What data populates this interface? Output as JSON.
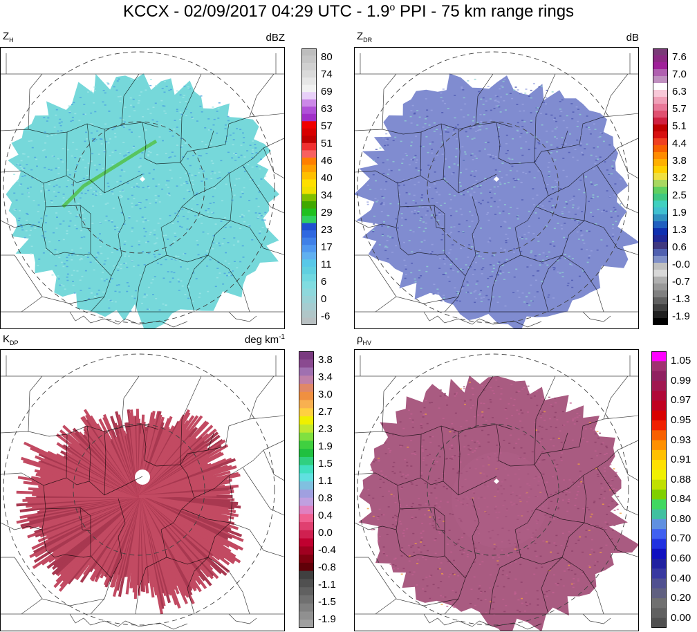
{
  "title": {
    "text": "KCCX - 02/09/2017 04:29 UTC - 1.9",
    "degree_sup": "o",
    "suffix": "PPI -  75 km range rings"
  },
  "colors": {
    "zh_echo": "#6fd6d8",
    "zh_band": "#4aa0e0",
    "zh_green": "#50c040",
    "zdr_echo": "#6a78c8",
    "kdp_echo": "#c24a62",
    "rhohv_echo": "#a4527a",
    "rhohv_speck": "#f0a040",
    "county_line": "#000000",
    "ring": "#404040"
  },
  "chart_data": [
    {
      "type": "heatmap",
      "title_main": "Z",
      "title_sub": "H",
      "unit": "dBZ",
      "unit_sup": "",
      "colorbar": {
        "tick_labels": [
          "80",
          "74",
          "69",
          "63",
          "57",
          "51",
          "46",
          "40",
          "34",
          "29",
          "23",
          "17",
          "11",
          "6",
          "0",
          "-6"
        ],
        "colors": [
          "#bdbdbd",
          "#c6c6c6",
          "#d0d0d0",
          "#dadada",
          "#e6e6e6",
          "#f1f1f1",
          "#e8d0f8",
          "#cc88e8",
          "#b050d8",
          "#a030c8",
          "#f00000",
          "#d80000",
          "#c00000",
          "#f03030",
          "#f86060",
          "#ff7f00",
          "#ff9f00",
          "#ffbf00",
          "#ffdf00",
          "#f0e000",
          "#80c000",
          "#40a800",
          "#20c020",
          "#30d060",
          "#2050d0",
          "#3068e0",
          "#4080e8",
          "#5098f0",
          "#60b0f0",
          "#58c8e8",
          "#60d0e0",
          "#70d8e0",
          "#80dce0",
          "#8ed8dc",
          "#9ad2d6",
          "#a6ccd0",
          "#b0c6c8",
          "#b8c0c2"
        ]
      },
      "range_rings_km": [
        75,
        150
      ],
      "grid": false
    },
    {
      "type": "heatmap",
      "title_main": "Z",
      "title_sub": "DR",
      "unit": "dB",
      "unit_sup": "",
      "colorbar": {
        "tick_labels": [
          "7.6",
          "7.0",
          "6.3",
          "5.7",
          "5.1",
          "4.4",
          "3.8",
          "3.2",
          "2.5",
          "1.9",
          "1.3",
          "0.6",
          "-0.0",
          "-0.7",
          "-1.3",
          "-1.9"
        ],
        "colors": [
          "#7a3a78",
          "#8c2a84",
          "#a0209a",
          "#b060b0",
          "#c090c0",
          "#ffffff",
          "#f8c8d8",
          "#f0a0b8",
          "#e87898",
          "#e05070",
          "#d02040",
          "#c00000",
          "#d81010",
          "#f04020",
          "#f86000",
          "#ff8c00",
          "#ffb000",
          "#ffd000",
          "#f0e040",
          "#a8d860",
          "#60d060",
          "#40c880",
          "#40d0c0",
          "#40c0d0",
          "#3090c0",
          "#2060c0",
          "#1030b0",
          "#202898",
          "#403880",
          "#5060b0",
          "#8090c8",
          "#c0c0c0",
          "#d8d8d8",
          "#b0b0b0",
          "#989898",
          "#808080",
          "#606060",
          "#404040",
          "#202020",
          "#000000"
        ]
      },
      "range_rings_km": [
        75,
        150
      ],
      "grid": false
    },
    {
      "type": "heatmap",
      "title_main": "K",
      "title_sub": "DP",
      "unit": "deg km",
      "unit_sup": "-1",
      "colorbar": {
        "tick_labels": [
          "3.8",
          "3.4",
          "3.0",
          "2.7",
          "2.3",
          "1.9",
          "1.5",
          "1.1",
          "0.8",
          "0.4",
          "0.0",
          "-0.4",
          "-0.8",
          "-1.1",
          "-1.5",
          "-1.9"
        ],
        "colors": [
          "#7a3a80",
          "#8a4a90",
          "#a070b0",
          "#c080a8",
          "#e08868",
          "#f09040",
          "#f8b050",
          "#ffd040",
          "#f0f000",
          "#c0e830",
          "#80e040",
          "#40d040",
          "#20c040",
          "#30d080",
          "#40e0c0",
          "#60e0e0",
          "#80c0e0",
          "#a0a0e0",
          "#c0a0e0",
          "#e080c0",
          "#f06090",
          "#e04070",
          "#d02050",
          "#c00030",
          "#a00020",
          "#800010",
          "#600008",
          "#404040",
          "#505050",
          "#606060",
          "#707070",
          "#808080",
          "#909090",
          "#a0a0a0"
        ]
      },
      "range_rings_km": [
        75,
        150
      ],
      "grid": false
    },
    {
      "type": "heatmap",
      "title_main": "ρ",
      "title_sub": "HV",
      "unit": "",
      "unit_sup": "",
      "colorbar": {
        "tick_labels": [
          "1.05",
          "0.99",
          "0.97",
          "0.95",
          "0.93",
          "0.91",
          "0.88",
          "0.84",
          "0.80",
          "0.70",
          "0.60",
          "0.40",
          "0.20",
          "0.00"
        ],
        "colors": [
          "#ff00ff",
          "#a03070",
          "#902060",
          "#a01850",
          "#b00838",
          "#c00020",
          "#d80000",
          "#f02000",
          "#f86000",
          "#ff9000",
          "#ffc000",
          "#ffe000",
          "#f0f000",
          "#c0e000",
          "#80d000",
          "#40d860",
          "#40c0a0",
          "#6090e0",
          "#4060f0",
          "#2030e0",
          "#1010c0",
          "#2020a0",
          "#3838a0",
          "#505090",
          "#606080",
          "#707070",
          "#606060",
          "#505050"
        ]
      },
      "range_rings_km": [
        75,
        150
      ],
      "grid": false
    }
  ]
}
